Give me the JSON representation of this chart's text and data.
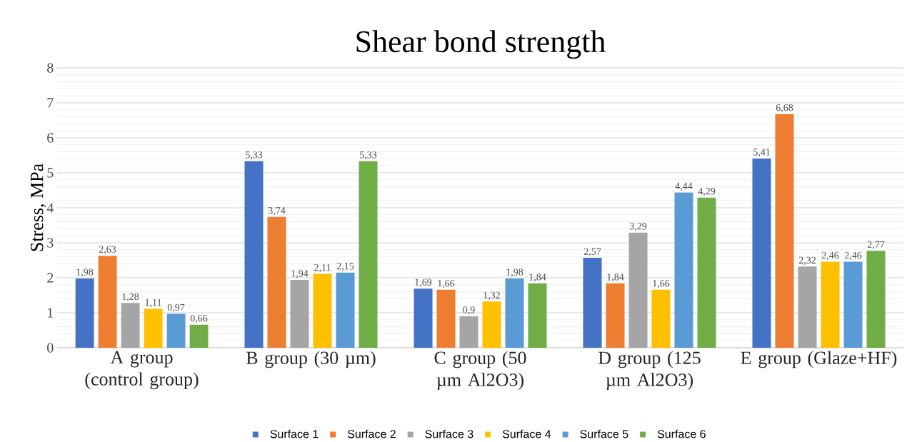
{
  "chart_data": {
    "type": "bar",
    "title": "Shear bond strength",
    "ylabel": "Stress, MPa",
    "categories": [
      "A group (control group)",
      "B group (30 µm)",
      "C group (50 µm Al2O3)",
      "D group (125 µm Al2O3)",
      "E group (Glaze+HF)"
    ],
    "series": [
      {
        "name": "Surface 1",
        "color": "#4472c4",
        "values": [
          1.98,
          5.33,
          1.69,
          2.57,
          5.41
        ],
        "value_labels": [
          "1,98",
          "5,33",
          "1,69",
          "2,57",
          "5,41"
        ]
      },
      {
        "name": "Surface 2",
        "color": "#ed7d31",
        "values": [
          2.63,
          3.74,
          1.66,
          1.84,
          6.68
        ],
        "value_labels": [
          "2,63",
          "3,74",
          "1,66",
          "1,84",
          "6,68"
        ]
      },
      {
        "name": "Surface 3",
        "color": "#a5a5a5",
        "values": [
          1.28,
          1.94,
          0.9,
          3.29,
          2.32
        ],
        "value_labels": [
          "1,28",
          "1,94",
          "0,9",
          "3,29",
          "2,32"
        ]
      },
      {
        "name": "Surface 4",
        "color": "#ffc000",
        "values": [
          1.11,
          2.11,
          1.32,
          1.66,
          2.46
        ],
        "value_labels": [
          "1,11",
          "2,11",
          "1,32",
          "1,66",
          "2,46"
        ]
      },
      {
        "name": "Surface 5",
        "color": "#5b9bd5",
        "values": [
          0.97,
          2.15,
          1.98,
          4.44,
          2.46
        ],
        "value_labels": [
          "0,97",
          "2,15",
          "1,98",
          "4,44",
          "2,46"
        ]
      },
      {
        "name": "Surface 6",
        "color": "#70ad47",
        "values": [
          0.66,
          5.33,
          1.84,
          4.29,
          2.77
        ],
        "value_labels": [
          "0,66",
          "5,33",
          "1,84",
          "4,29",
          "2,77"
        ]
      }
    ],
    "ylim": [
      0,
      8
    ],
    "yticks": [
      0,
      1,
      2,
      3,
      4,
      5,
      6,
      7,
      8
    ],
    "grid": "y",
    "legend": "bottom"
  }
}
